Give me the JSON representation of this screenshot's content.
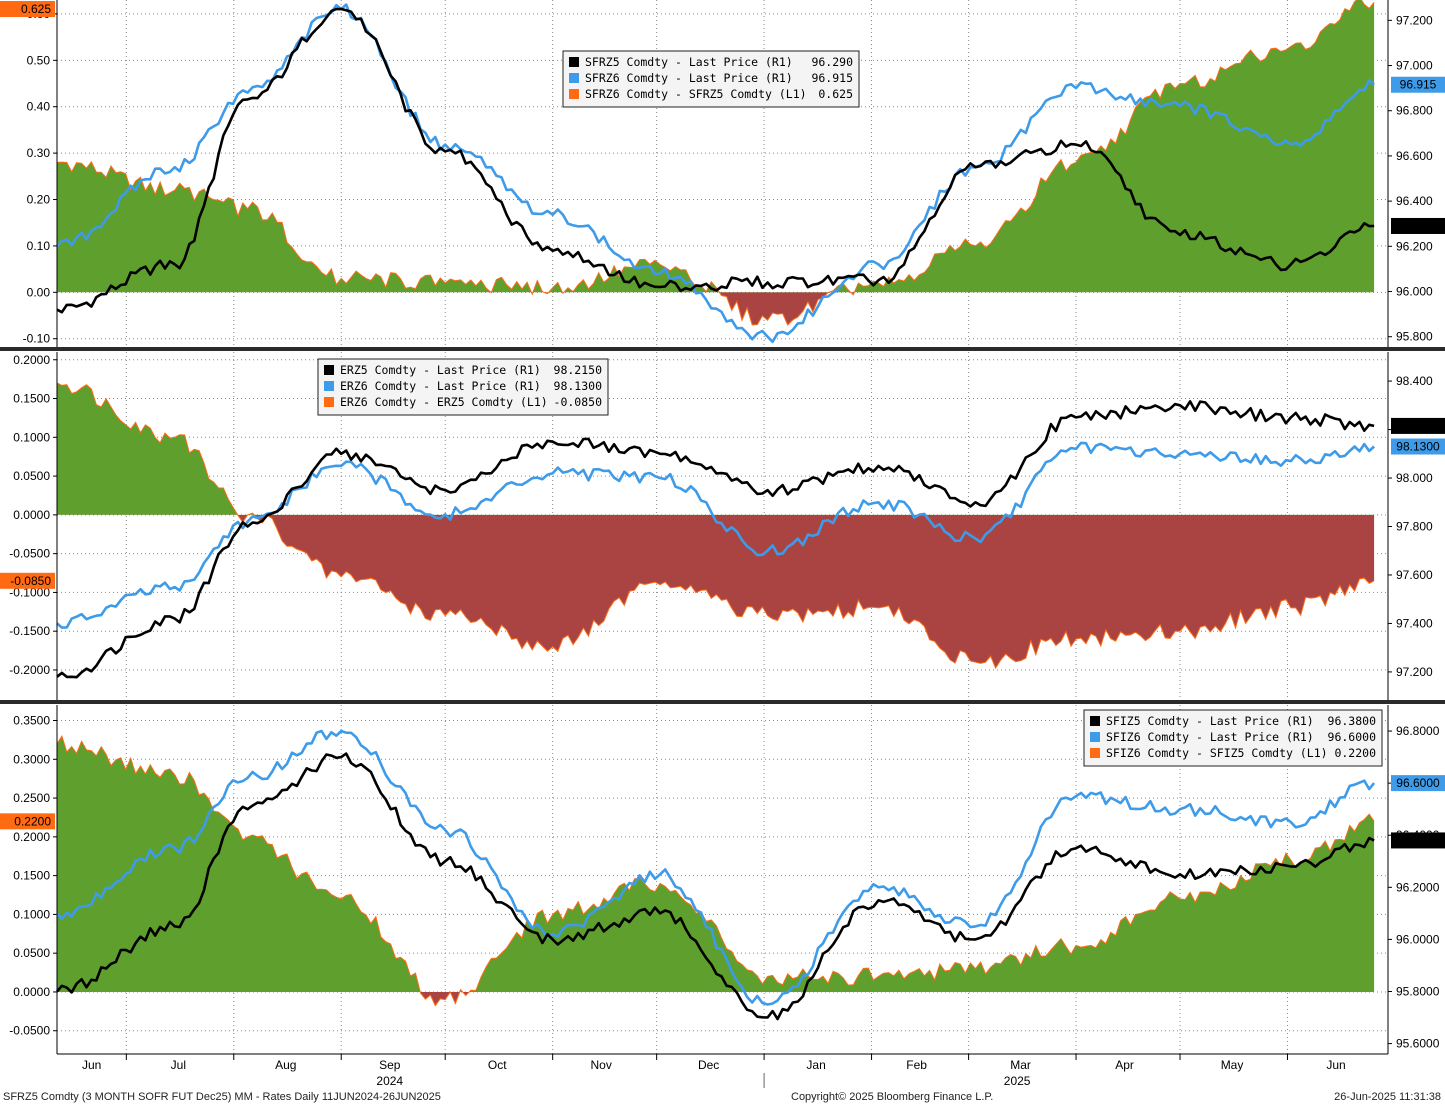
{
  "footer": {
    "left": "SFRZ5 Comdty (3 MONTH SOFR FUT  Dec25) MM - Rates  Daily 11JUN2024-26JUN2025",
    "center": "Copyright© 2025 Bloomberg Finance L.P.",
    "right": "26-Jun-2025 11:31:38"
  },
  "x_axis": {
    "months": [
      "Jun",
      "Jul",
      "Aug",
      "Sep",
      "Oct",
      "Nov",
      "Dec",
      "Jan",
      "Feb",
      "Mar",
      "Apr",
      "May",
      "Jun"
    ],
    "years": [
      "2024",
      "2025"
    ]
  },
  "colors": {
    "black": "#000000",
    "blue": "#3d9be9",
    "green": "#5e9f2e",
    "red": "#a94442",
    "orange": "#ff6a13",
    "grid": "#888888"
  },
  "chart_data": [
    {
      "type": "line",
      "x_dates": [
        "2024-06-11",
        "2024-07-15",
        "2024-08-05",
        "2024-09-01",
        "2024-10-01",
        "2024-11-01",
        "2024-12-02",
        "2025-01-02",
        "2025-02-03",
        "2025-03-03",
        "2025-04-01",
        "2025-05-01",
        "2025-06-02",
        "2025-06-26"
      ],
      "left_ticks": [
        "0.60",
        "0.50",
        "0.40",
        "0.30",
        "0.20",
        "0.10",
        "0.00",
        "-0.10"
      ],
      "left_ylim": [
        -0.12,
        0.63
      ],
      "right_ticks": [
        "97.200",
        "97.000",
        "96.800",
        "96.600",
        "96.400",
        "96.200",
        "96.000",
        "95.800"
      ],
      "right_ylim": [
        95.75,
        97.29
      ],
      "legend": [
        {
          "label": "SFRZ5 Comdty - Last Price (R1)",
          "value": "96.290",
          "color": "#000000"
        },
        {
          "label": "SFRZ6 Comdty - Last Price (R1)",
          "value": "96.915",
          "color": "#3d9be9"
        },
        {
          "label": "SFRZ6 Comdty - SFRZ5 Comdty (L1)",
          "value": "0.625",
          "color": "#ff6a13"
        }
      ],
      "last_left": "0.625",
      "last_right": [
        {
          "text": "96.915",
          "value": 96.915,
          "color": "blue"
        },
        {
          "text": "96.290",
          "value": 96.29,
          "color": "black"
        }
      ],
      "series": [
        {
          "name": "SFRZ5 Comdty - Last Price (R1)",
          "axis": "right",
          "values": [
            95.92,
            96.12,
            96.85,
            97.25,
            96.62,
            96.18,
            96.02,
            96.04,
            96.05,
            96.55,
            96.65,
            96.25,
            96.12,
            96.29
          ]
        },
        {
          "name": "SFRZ6 Comdty - Last Price (R1)",
          "axis": "right",
          "values": [
            96.2,
            96.55,
            96.88,
            97.25,
            96.65,
            96.34,
            96.08,
            95.8,
            96.12,
            96.55,
            96.9,
            96.82,
            96.65,
            96.915
          ]
        },
        {
          "name": "SFRZ6 Comdty - SFRZ5 Comdty (L1)",
          "axis": "left",
          "values": [
            0.28,
            0.22,
            0.18,
            0.03,
            0.02,
            0.01,
            0.06,
            -0.06,
            0.02,
            0.1,
            0.28,
            0.45,
            0.53,
            0.625
          ]
        }
      ]
    },
    {
      "type": "line",
      "x_dates": [
        "2024-06-11",
        "2024-07-15",
        "2024-08-05",
        "2024-09-01",
        "2024-10-01",
        "2024-11-01",
        "2024-12-02",
        "2025-01-02",
        "2025-02-03",
        "2025-03-03",
        "2025-04-01",
        "2025-05-01",
        "2025-06-02",
        "2025-06-26"
      ],
      "left_ticks": [
        "0.2000",
        "0.1500",
        "0.1000",
        "0.0500",
        "0.0000",
        "-0.0500",
        "-0.1000",
        "-0.1500",
        "-0.2000"
      ],
      "left_ylim": [
        -0.24,
        0.21
      ],
      "right_ticks": [
        "98.400",
        "98.200",
        "98.000",
        "97.800",
        "97.600",
        "97.400",
        "97.200"
      ],
      "right_ylim": [
        97.08,
        98.52
      ],
      "legend": [
        {
          "label": "ERZ5 Comdty - Last Price (R1)",
          "value": "98.2150",
          "color": "#000000"
        },
        {
          "label": "ERZ6 Comdty - Last Price (R1)",
          "value": "98.1300",
          "color": "#3d9be9"
        },
        {
          "label": "ERZ6 Comdty - ERZ5 Comdty (L1)",
          "value": "-0.0850",
          "color": "#ff6a13"
        }
      ],
      "last_left": "-0.0850",
      "last_right": [
        {
          "text": "98.2150",
          "value": 98.215,
          "color": "black"
        },
        {
          "text": "98.1300",
          "value": 98.13,
          "color": "blue"
        }
      ],
      "series": [
        {
          "name": "ERZ5 Comdty - Last Price (R1)",
          "axis": "right",
          "values": [
            97.18,
            97.42,
            97.8,
            98.1,
            97.95,
            98.15,
            98.1,
            97.95,
            98.05,
            97.9,
            98.25,
            98.3,
            98.25,
            98.215
          ]
        },
        {
          "name": "ERZ6 Comdty - Last Price (R1)",
          "axis": "right",
          "values": [
            97.4,
            97.55,
            97.82,
            98.05,
            97.85,
            98.02,
            98.0,
            97.7,
            97.9,
            97.75,
            98.12,
            98.1,
            98.07,
            98.13
          ]
        },
        {
          "name": "ERZ6 Comdty - ERZ5 Comdty (L1)",
          "axis": "left",
          "values": [
            0.17,
            0.1,
            0.0,
            -0.08,
            -0.13,
            -0.17,
            -0.09,
            -0.13,
            -0.12,
            -0.19,
            -0.16,
            -0.15,
            -0.12,
            -0.085
          ]
        }
      ]
    },
    {
      "type": "line",
      "x_dates": [
        "2024-06-11",
        "2024-07-15",
        "2024-08-05",
        "2024-09-01",
        "2024-10-01",
        "2024-11-01",
        "2024-12-02",
        "2025-01-02",
        "2025-02-03",
        "2025-03-03",
        "2025-04-01",
        "2025-05-01",
        "2025-06-02",
        "2025-06-26"
      ],
      "left_ticks": [
        "0.3500",
        "0.3000",
        "0.2500",
        "0.2000",
        "0.1500",
        "0.1000",
        "0.0500",
        "0.0000",
        "-0.0500"
      ],
      "left_ylim": [
        -0.08,
        0.37
      ],
      "right_ticks": [
        "96.8000",
        "96.6000",
        "96.4000",
        "96.2000",
        "96.0000",
        "95.8000",
        "95.6000"
      ],
      "right_ylim": [
        95.56,
        96.9
      ],
      "legend": [
        {
          "label": "SFIZ5 Comdty - Last Price (R1)",
          "value": "96.3800",
          "color": "#000000"
        },
        {
          "label": "SFIZ6 Comdty - Last Price (R1)",
          "value": "96.6000",
          "color": "#3d9be9"
        },
        {
          "label": "SFIZ6 Comdty - SFIZ5 Comdty (L1)",
          "value": "0.2200",
          "color": "#ff6a13"
        }
      ],
      "last_left": "0.2200",
      "last_right": [
        {
          "text": "96.6000",
          "value": 96.6,
          "color": "blue"
        },
        {
          "text": "96.3800",
          "value": 96.38,
          "color": "black"
        }
      ],
      "series": [
        {
          "name": "SFIZ5 Comdty - Last Price (R1)",
          "axis": "right",
          "values": [
            95.8,
            96.05,
            96.5,
            96.7,
            96.3,
            96.0,
            96.1,
            95.7,
            96.15,
            96.0,
            96.35,
            96.25,
            96.28,
            96.38
          ]
        },
        {
          "name": "SFIZ6 Comdty - Last Price (R1)",
          "axis": "right",
          "values": [
            96.1,
            96.35,
            96.62,
            96.8,
            96.42,
            96.02,
            96.25,
            95.75,
            96.2,
            96.05,
            96.55,
            96.5,
            96.45,
            96.6
          ]
        },
        {
          "name": "SFIZ6 Comdty - SFIZ5 Comdty (L1)",
          "axis": "left",
          "values": [
            0.32,
            0.28,
            0.2,
            0.12,
            -0.01,
            0.1,
            0.14,
            0.02,
            0.02,
            0.03,
            0.06,
            0.12,
            0.17,
            0.22
          ]
        }
      ]
    }
  ]
}
